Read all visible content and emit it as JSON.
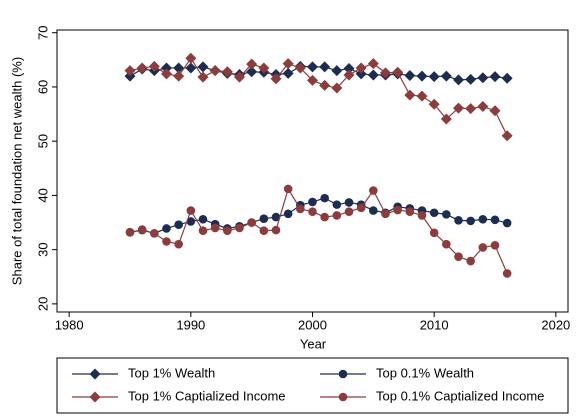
{
  "chart_data": {
    "type": "line",
    "xlabel": "Year",
    "ylabel": "Share of total foundation net wealth (%)",
    "x": [
      1985,
      1986,
      1987,
      1988,
      1989,
      1990,
      1991,
      1992,
      1993,
      1994,
      1995,
      1996,
      1997,
      1998,
      1999,
      2000,
      2001,
      2002,
      2003,
      2004,
      2005,
      2006,
      2007,
      2008,
      2009,
      2010,
      2011,
      2012,
      2013,
      2014,
      2015,
      2016
    ],
    "series": [
      {
        "name": "Top 1% Wealth",
        "color": "#1c2d52",
        "marker": "diamond",
        "values": [
          62,
          63.3,
          63,
          63.5,
          63.5,
          63.5,
          63.7,
          63,
          62.5,
          62.3,
          62.8,
          62.7,
          62.3,
          62.5,
          63.8,
          63.7,
          63.7,
          63,
          63.4,
          62.4,
          62.2,
          62.2,
          62.4,
          62.1,
          62,
          61.9,
          62,
          61.3,
          61.4,
          61.7,
          61.9,
          61.6
        ]
      },
      {
        "name": "Top 0.1% Wealth",
        "color": "#1c2d52",
        "marker": "circle",
        "values": [
          33.2,
          33.6,
          33,
          33.9,
          34.6,
          35.2,
          35.6,
          34.7,
          33.9,
          34.3,
          35,
          35.7,
          36,
          36.6,
          38.2,
          38.8,
          39.5,
          38.3,
          38.7,
          38.3,
          37.2,
          36.8,
          37.9,
          37.6,
          37.2,
          36.8,
          36.5,
          35.4,
          35.3,
          35.6,
          35.5,
          34.9
        ]
      },
      {
        "name": "Top 1% Captialized Income",
        "color": "#8e3b3b",
        "marker": "diamond",
        "values": [
          63,
          63.5,
          63.8,
          62.4,
          62,
          65.3,
          61.8,
          63,
          62.8,
          61.8,
          64.2,
          63.5,
          61.5,
          64.3,
          63.5,
          61.2,
          60.3,
          59.8,
          62.2,
          63.5,
          64.3,
          62.6,
          62.7,
          58.5,
          58.3,
          56.8,
          54.1,
          56.1,
          56,
          56.4,
          55.6,
          51
        ]
      },
      {
        "name": "Top 0.1% Captialized Income",
        "color": "#8e3b3b",
        "marker": "circle",
        "values": [
          33.2,
          33.7,
          33,
          31.5,
          31,
          37.2,
          33.5,
          34,
          33.5,
          34,
          35,
          33.5,
          33.6,
          41.2,
          37.5,
          37,
          36,
          36.3,
          37,
          37.7,
          40.9,
          36.6,
          37.3,
          37,
          36.3,
          33.1,
          31,
          28.7,
          27.9,
          30.4,
          30.8,
          25.6
        ]
      }
    ],
    "xlim": [
      1979,
      2021
    ],
    "xticks": [
      1980,
      1990,
      2000,
      2010,
      2020
    ],
    "ylim": [
      18.5,
      70.5
    ],
    "yticks": [
      20,
      30,
      40,
      50,
      60,
      70
    ],
    "grid": false,
    "legend": "bottom"
  }
}
